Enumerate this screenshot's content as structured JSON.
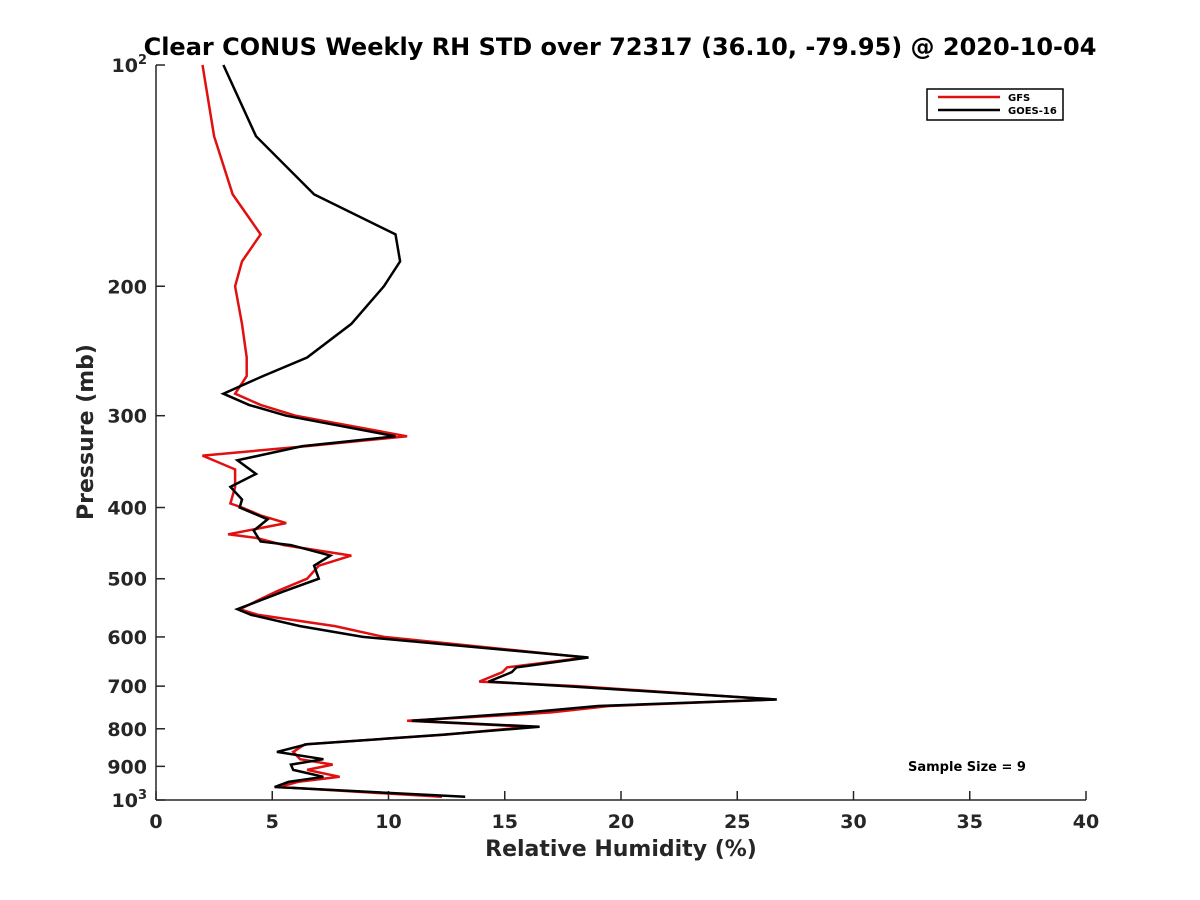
{
  "chart_data": {
    "type": "line",
    "title": "Clear CONUS Weekly RH STD over 72317 (36.10, -79.95) @ 2020-10-04",
    "xlabel": "Relative Humidity (%)",
    "ylabel": "Pressure (mb)",
    "xlim": [
      0,
      40
    ],
    "ylim": [
      100,
      1000
    ],
    "yscale": "log",
    "y_reversed": true,
    "grid": false,
    "legend_position": "top-right",
    "x_ticks": [
      0,
      5,
      10,
      15,
      20,
      25,
      30,
      35,
      40
    ],
    "x_tick_labels": [
      "0",
      "5",
      "10",
      "15",
      "20",
      "25",
      "30",
      "35",
      "40"
    ],
    "y_ticks": [
      {
        "value": 100,
        "label": "10",
        "sup": "2"
      },
      {
        "value": 200,
        "label": "200",
        "sup": ""
      },
      {
        "value": 300,
        "label": "300",
        "sup": ""
      },
      {
        "value": 400,
        "label": "400",
        "sup": ""
      },
      {
        "value": 500,
        "label": "500",
        "sup": ""
      },
      {
        "value": 600,
        "label": "600",
        "sup": ""
      },
      {
        "value": 700,
        "label": "700",
        "sup": ""
      },
      {
        "value": 800,
        "label": "800",
        "sup": ""
      },
      {
        "value": 900,
        "label": "900",
        "sup": ""
      },
      {
        "value": 1000,
        "label": "10",
        "sup": "3"
      }
    ],
    "annotation": "Sample Size = 9",
    "series": [
      {
        "name": "GFS",
        "color": "#e01010",
        "points": [
          [
            2.0,
            100
          ],
          [
            2.5,
            125
          ],
          [
            3.3,
            150
          ],
          [
            4.5,
            170
          ],
          [
            3.7,
            185
          ],
          [
            3.4,
            200
          ],
          [
            3.7,
            225
          ],
          [
            3.9,
            250
          ],
          [
            3.9,
            265
          ],
          [
            3.4,
            280
          ],
          [
            4.5,
            290
          ],
          [
            6.0,
            300
          ],
          [
            10.8,
            320
          ],
          [
            6.5,
            330
          ],
          [
            2.0,
            340
          ],
          [
            3.4,
            355
          ],
          [
            3.4,
            375
          ],
          [
            3.2,
            395
          ],
          [
            3.7,
            400
          ],
          [
            4.5,
            410
          ],
          [
            5.6,
            420
          ],
          [
            3.1,
            435
          ],
          [
            4.3,
            440
          ],
          [
            5.5,
            450
          ],
          [
            8.4,
            465
          ],
          [
            7.0,
            480
          ],
          [
            6.5,
            500
          ],
          [
            5.2,
            520
          ],
          [
            3.6,
            550
          ],
          [
            4.4,
            560
          ],
          [
            7.7,
            580
          ],
          [
            9.8,
            600
          ],
          [
            18.5,
            640
          ],
          [
            15.1,
            660
          ],
          [
            14.9,
            670
          ],
          [
            13.9,
            690
          ],
          [
            18.1,
            700
          ],
          [
            26.6,
            730
          ],
          [
            19.5,
            745
          ],
          [
            17.0,
            760
          ],
          [
            15.6,
            765
          ],
          [
            10.8,
            780
          ],
          [
            16.1,
            795
          ],
          [
            12.4,
            815
          ],
          [
            6.4,
            840
          ],
          [
            5.9,
            860
          ],
          [
            6.2,
            880
          ],
          [
            7.6,
            895
          ],
          [
            6.5,
            910
          ],
          [
            7.9,
            930
          ],
          [
            6.1,
            945
          ],
          [
            5.3,
            960
          ],
          [
            12.3,
            990
          ]
        ]
      },
      {
        "name": "GOES-16",
        "color": "#000000",
        "points": [
          [
            2.9,
            100
          ],
          [
            4.3,
            125
          ],
          [
            6.8,
            150
          ],
          [
            10.3,
            170
          ],
          [
            10.5,
            185
          ],
          [
            9.8,
            200
          ],
          [
            8.4,
            225
          ],
          [
            6.5,
            250
          ],
          [
            4.6,
            265
          ],
          [
            2.9,
            280
          ],
          [
            4.0,
            290
          ],
          [
            5.6,
            300
          ],
          [
            10.3,
            320
          ],
          [
            6.3,
            330
          ],
          [
            3.5,
            345
          ],
          [
            4.3,
            360
          ],
          [
            3.2,
            375
          ],
          [
            3.7,
            390
          ],
          [
            3.6,
            400
          ],
          [
            4.8,
            415
          ],
          [
            4.2,
            430
          ],
          [
            4.5,
            445
          ],
          [
            5.8,
            450
          ],
          [
            7.5,
            465
          ],
          [
            6.8,
            480
          ],
          [
            7.0,
            500
          ],
          [
            5.5,
            520
          ],
          [
            3.5,
            550
          ],
          [
            4.1,
            560
          ],
          [
            6.2,
            580
          ],
          [
            8.9,
            600
          ],
          [
            18.6,
            640
          ],
          [
            15.5,
            660
          ],
          [
            15.3,
            670
          ],
          [
            14.3,
            690
          ],
          [
            17.6,
            700
          ],
          [
            26.7,
            730
          ],
          [
            19.0,
            745
          ],
          [
            16.0,
            760
          ],
          [
            11.0,
            780
          ],
          [
            16.5,
            795
          ],
          [
            12.3,
            815
          ],
          [
            6.5,
            840
          ],
          [
            5.2,
            860
          ],
          [
            7.2,
            880
          ],
          [
            5.8,
            895
          ],
          [
            5.9,
            910
          ],
          [
            7.2,
            930
          ],
          [
            5.7,
            945
          ],
          [
            5.1,
            960
          ],
          [
            13.3,
            990
          ]
        ]
      }
    ]
  }
}
